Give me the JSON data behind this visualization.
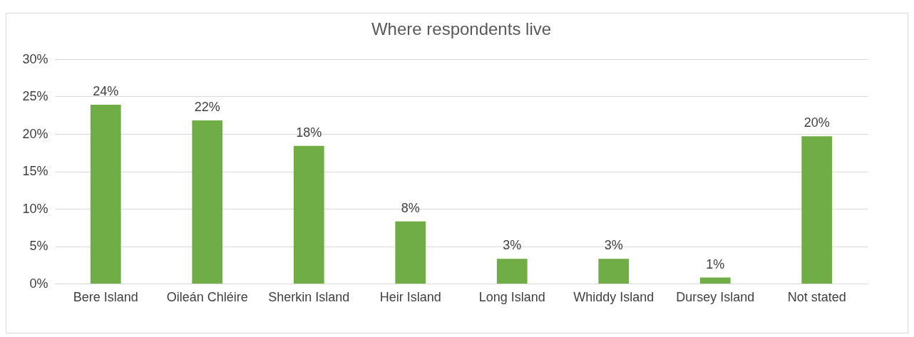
{
  "chart_data": {
    "type": "bar",
    "title": "Where respondents live",
    "categories": [
      "Bere Island",
      "Oileán Chléire",
      "Sherkin Island",
      "Heir Island",
      "Long Island",
      "Whiddy Island",
      "Dursey Island",
      "Not stated"
    ],
    "values": [
      23.9,
      21.8,
      18.4,
      8.3,
      3.3,
      3.3,
      0.8,
      19.7
    ],
    "value_labels": [
      "24%",
      "22%",
      "18%",
      "8%",
      "3%",
      "3%",
      "1%",
      "20%"
    ],
    "color": "#70ad47",
    "ylim": [
      0,
      30
    ],
    "yticks": [
      {
        "value": 0,
        "label": "0%"
      },
      {
        "value": 5,
        "label": "5%"
      },
      {
        "value": 10,
        "label": "10%"
      },
      {
        "value": 15,
        "label": "15%"
      },
      {
        "value": 20,
        "label": "20%"
      },
      {
        "value": 25,
        "label": "25%"
      },
      {
        "value": 30,
        "label": "30%"
      }
    ],
    "grid": "y"
  }
}
